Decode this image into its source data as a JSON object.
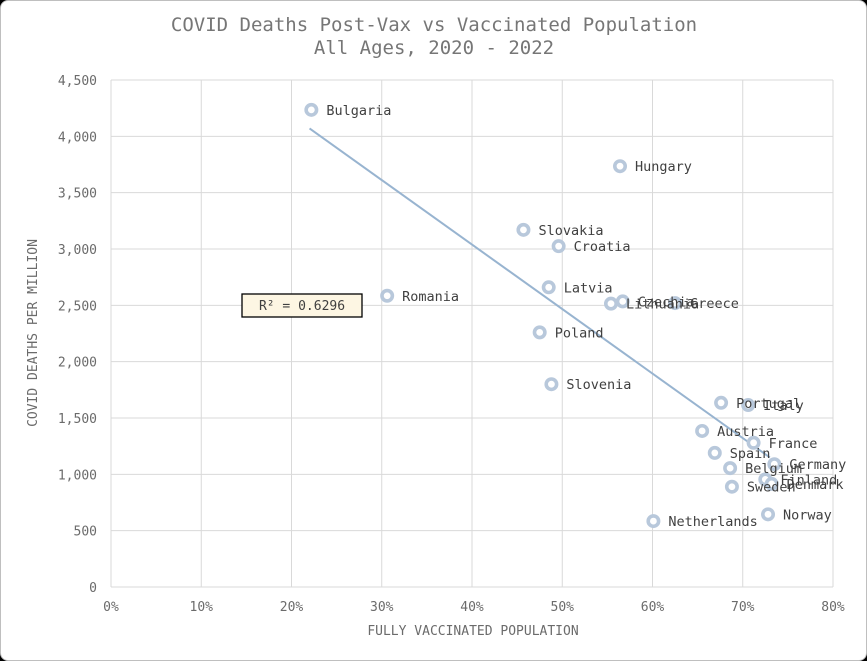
{
  "chart_data": {
    "type": "scatter",
    "title": "COVID Deaths Post-Vax vs Vaccinated Population",
    "subtitle": "All Ages, 2020 - 2022",
    "xlabel": "FULLY VACCINATED POPULATION",
    "ylabel": "COVID DEATHS PER MILLION",
    "xlim": [
      0,
      0.8
    ],
    "ylim": [
      0,
      4500
    ],
    "x_ticks": [
      "0%",
      "10%",
      "20%",
      "30%",
      "40%",
      "50%",
      "60%",
      "70%",
      "80%"
    ],
    "y_ticks": [
      "0",
      "500",
      "1,000",
      "1,500",
      "2,000",
      "2,500",
      "3,000",
      "3,500",
      "4,000",
      "4,500"
    ],
    "grid": true,
    "r_squared_label": "R² = 0.6296",
    "trendline": {
      "x": [
        0.22,
        0.73
      ],
      "y": [
        4070,
        1150
      ]
    },
    "points": [
      {
        "label": "Bulgaria",
        "x": 0.222,
        "y": 4235
      },
      {
        "label": "Hungary",
        "x": 0.564,
        "y": 3735
      },
      {
        "label": "Slovakia",
        "x": 0.457,
        "y": 3170
      },
      {
        "label": "Croatia",
        "x": 0.496,
        "y": 3025
      },
      {
        "label": "Latvia",
        "x": 0.485,
        "y": 2660
      },
      {
        "label": "Romania",
        "x": 0.306,
        "y": 2585
      },
      {
        "label": "Lithuania",
        "x": 0.554,
        "y": 2515
      },
      {
        "label": "Czechia",
        "x": 0.567,
        "y": 2535
      },
      {
        "label": "Greece",
        "x": 0.625,
        "y": 2520
      },
      {
        "label": "Poland",
        "x": 0.475,
        "y": 2260
      },
      {
        "label": "Slovenia",
        "x": 0.488,
        "y": 1800
      },
      {
        "label": "Portugal",
        "x": 0.676,
        "y": 1635
      },
      {
        "label": "Italy",
        "x": 0.706,
        "y": 1615
      },
      {
        "label": "Austria",
        "x": 0.655,
        "y": 1385
      },
      {
        "label": "France",
        "x": 0.712,
        "y": 1280
      },
      {
        "label": "Spain",
        "x": 0.669,
        "y": 1190
      },
      {
        "label": "Germany",
        "x": 0.735,
        "y": 1090
      },
      {
        "label": "Belgium",
        "x": 0.686,
        "y": 1055
      },
      {
        "label": "Finland",
        "x": 0.725,
        "y": 955
      },
      {
        "label": "Denmark",
        "x": 0.732,
        "y": 915
      },
      {
        "label": "Sweden",
        "x": 0.688,
        "y": 890
      },
      {
        "label": "Norway",
        "x": 0.728,
        "y": 645
      },
      {
        "label": "Netherlands",
        "x": 0.601,
        "y": 585
      }
    ],
    "colors": {
      "marker": "#b8c8db",
      "trendline": "#98b4d0",
      "grid": "#d9d9d9"
    }
  }
}
